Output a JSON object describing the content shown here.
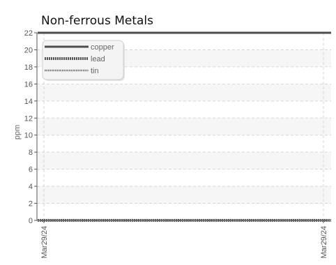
{
  "chart_data": {
    "type": "line",
    "title": "Non-ferrous Metals",
    "xlabel": "",
    "ylabel": "ppm",
    "ylim": [
      0,
      22
    ],
    "yticks": [
      0,
      2,
      4,
      6,
      8,
      10,
      12,
      14,
      16,
      18,
      20,
      22
    ],
    "x": [
      "Mar29/24",
      "Mar29/24"
    ],
    "grid": true,
    "legend_position": "top-left",
    "series": [
      {
        "name": "copper",
        "values": [
          22,
          22
        ],
        "color": "#4d4d4d",
        "style": "solid"
      },
      {
        "name": "lead",
        "values": [
          0,
          0
        ],
        "color": "#555555",
        "style": "dashed"
      },
      {
        "name": "tin",
        "values": [
          0,
          0
        ],
        "color": "#777777",
        "style": "dotted"
      }
    ]
  }
}
